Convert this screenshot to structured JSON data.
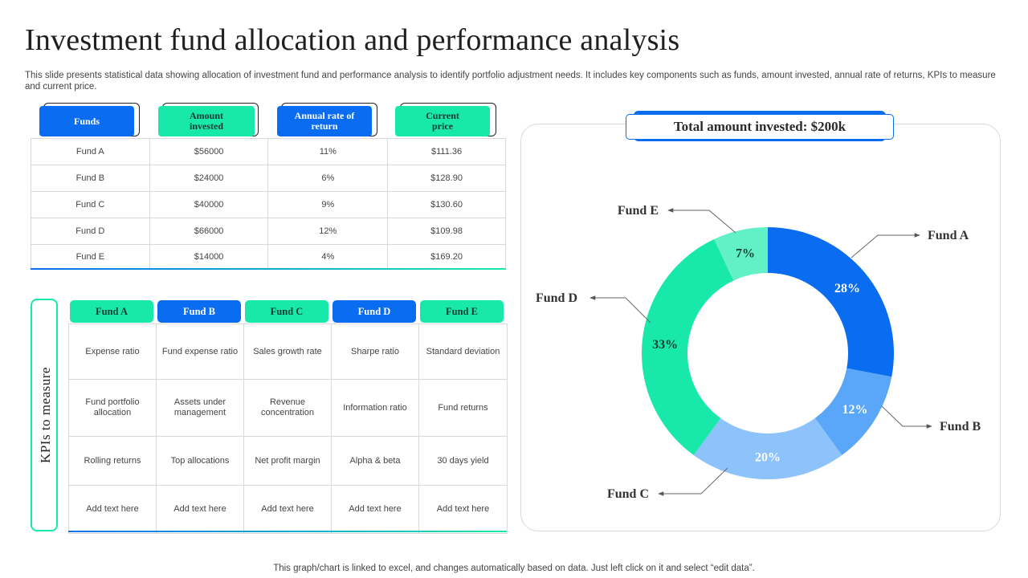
{
  "title": "Investment fund allocation and performance analysis",
  "subtitle": "This slide presents statistical data showing allocation of investment fund and performance analysis to identify portfolio adjustment needs. It includes key components such as funds, amount invested, annual rate of returns, KPIs to measure and current price.",
  "footer": "This graph/chart is linked to excel,  and changes automatically based on data. Just left click on it and select “edit data”.",
  "colors": {
    "blue": "#0a6cf0",
    "green": "#18e8aa",
    "light_blue": "#8ec2fb",
    "mid_blue": "#5aa6f8",
    "pale_green": "#62f0c6"
  },
  "funds_table": {
    "headers": [
      "Funds",
      "Amount invested",
      "Annual rate of return",
      "Current price"
    ],
    "rows": [
      [
        "Fund A",
        "$56000",
        "11%",
        "$111.36"
      ],
      [
        "Fund B",
        "$24000",
        "6%",
        "$128.90"
      ],
      [
        "Fund C",
        "$40000",
        "9%",
        "$130.60"
      ],
      [
        "Fund D",
        "$66000",
        "12%",
        "$109.98"
      ],
      [
        "Fund E",
        "$14000",
        "4%",
        "$169.20"
      ]
    ]
  },
  "kpi": {
    "side_label": "KPIs to measure",
    "headers": [
      "Fund A",
      "Fund B",
      "Fund C",
      "Fund D",
      "Fund E"
    ],
    "rows": [
      [
        "Expense ratio",
        "Fund expense ratio",
        "Sales growth rate",
        "Sharpe ratio",
        "Standard deviation"
      ],
      [
        "Fund portfolio allocation",
        "Assets under management",
        "Revenue concentration",
        "Information  ratio",
        "Fund returns"
      ],
      [
        "Rolling  returns",
        "Top allocations",
        "Net profit margin",
        "Alpha & beta",
        "30 days yield"
      ],
      [
        "Add text here",
        "Add text here",
        "Add text here",
        "Add text here",
        "Add text here"
      ]
    ]
  },
  "total_label": "Total amount invested: $200k",
  "chart_data": {
    "type": "pie",
    "donut": true,
    "title": "Total amount invested: $200k",
    "categories": [
      "Fund A",
      "Fund B",
      "Fund C",
      "Fund D",
      "Fund E"
    ],
    "values": [
      28,
      12,
      20,
      33,
      7
    ],
    "labels": [
      "28%",
      "12%",
      "20%",
      "33%",
      "7%"
    ],
    "colors": [
      "#0a6cf0",
      "#5aa6f8",
      "#8ec2fb",
      "#18e8aa",
      "#62f0c6"
    ],
    "legend": "callouts"
  }
}
